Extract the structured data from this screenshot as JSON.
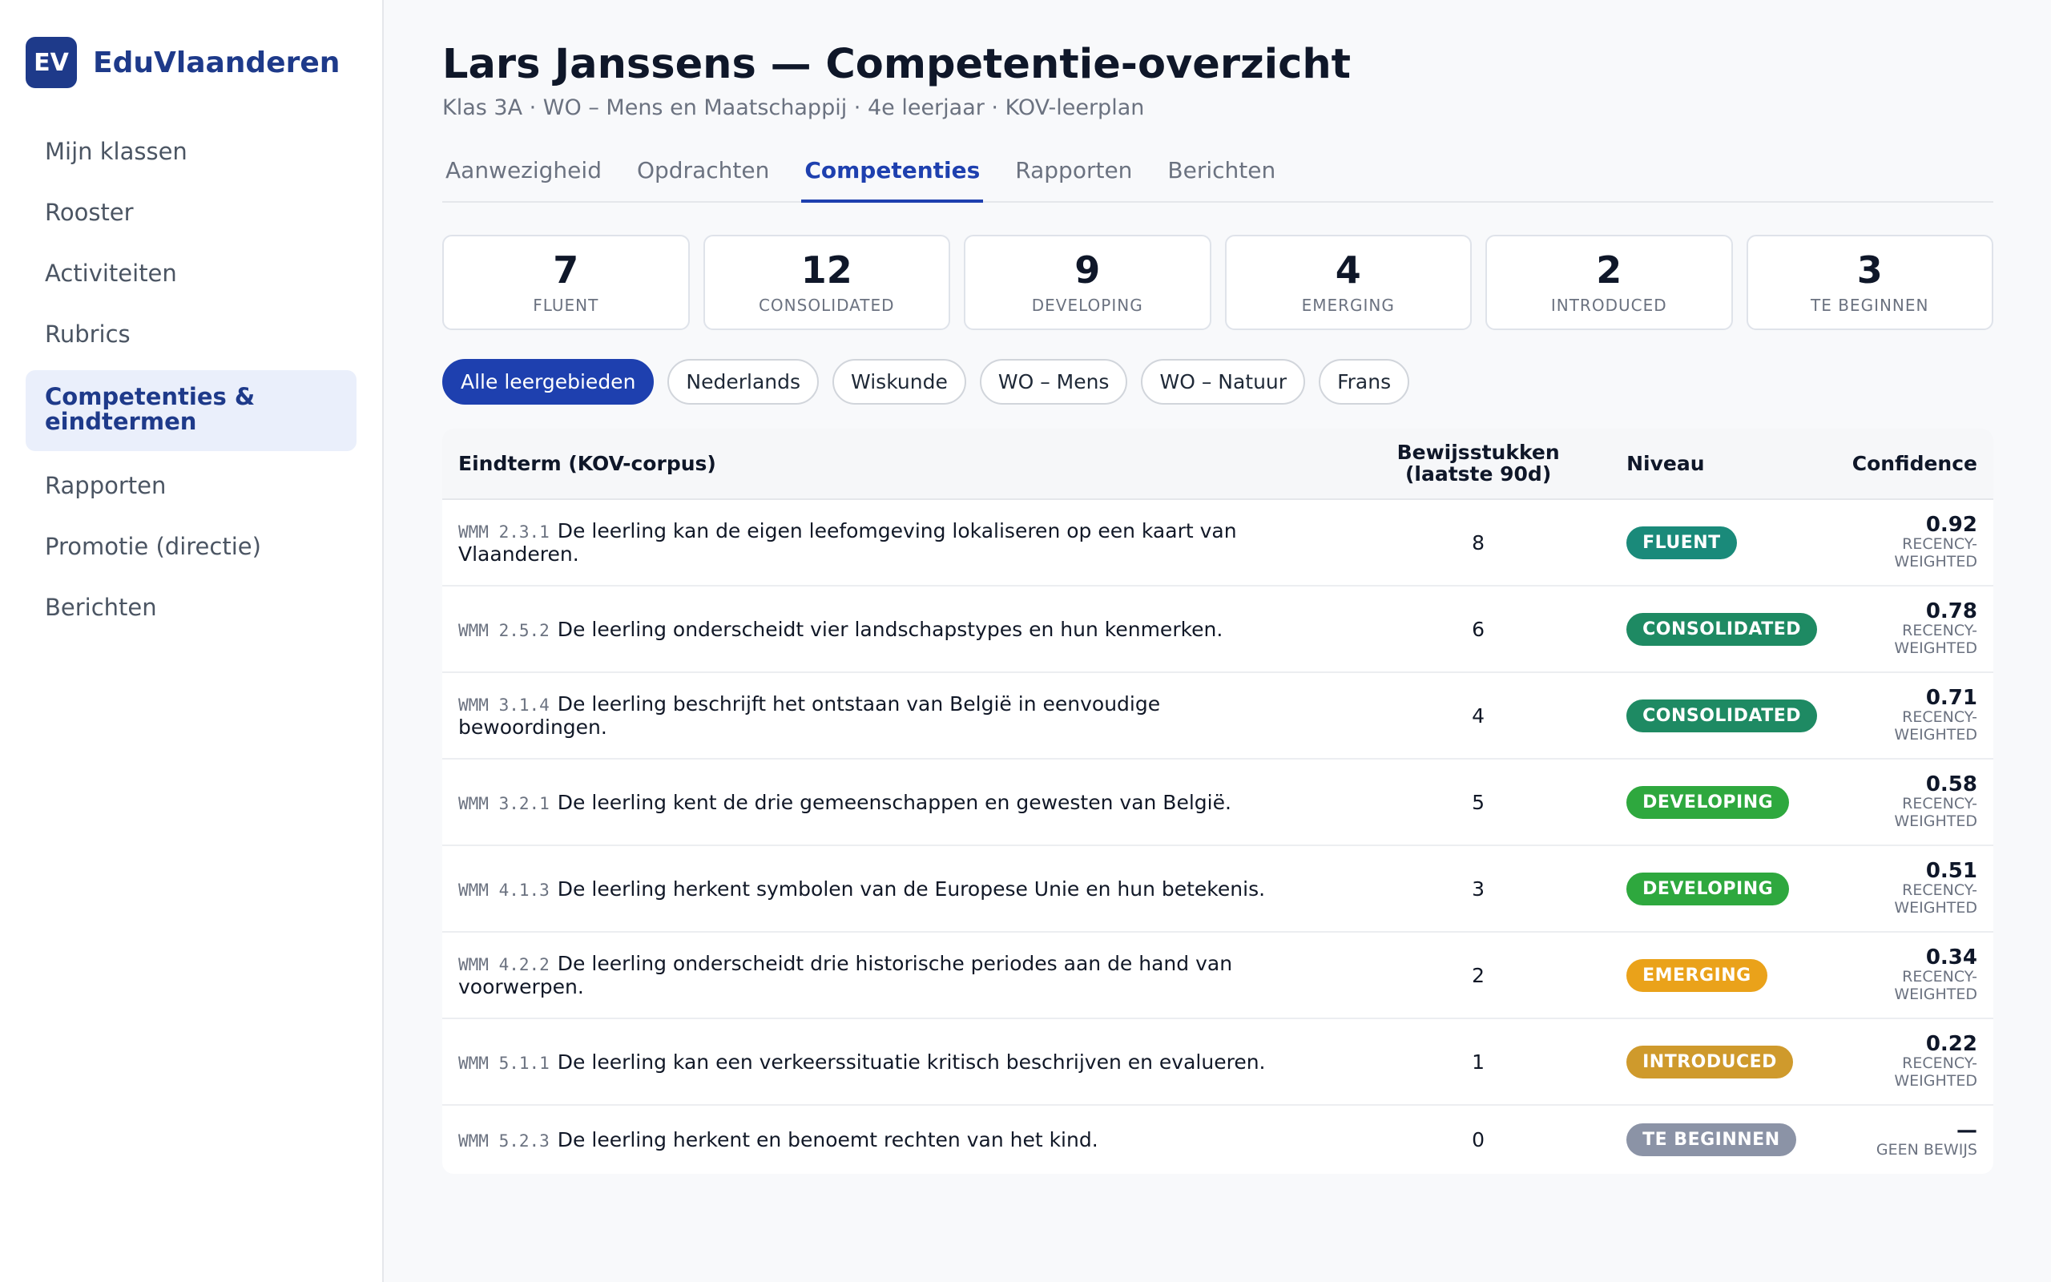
{
  "brand": {
    "logo": "EV",
    "name": "EduVlaanderen"
  },
  "sidebar": {
    "items": [
      {
        "label": "Mijn klassen",
        "active": false
      },
      {
        "label": "Rooster",
        "active": false
      },
      {
        "label": "Activiteiten",
        "active": false
      },
      {
        "label": "Rubrics",
        "active": false
      },
      {
        "label": "Competenties & eindtermen",
        "active": true
      },
      {
        "label": "Rapporten",
        "active": false
      },
      {
        "label": "Promotie (directie)",
        "active": false
      },
      {
        "label": "Berichten",
        "active": false
      }
    ]
  },
  "header": {
    "title": "Lars Janssens — Competentie-overzicht",
    "subtitle": "Klas 3A · WO – Mens en Maatschappij · 4e leerjaar · KOV-leerplan"
  },
  "tabs": [
    {
      "label": "Aanwezigheid",
      "active": false
    },
    {
      "label": "Opdrachten",
      "active": false
    },
    {
      "label": "Competenties",
      "active": true
    },
    {
      "label": "Rapporten",
      "active": false
    },
    {
      "label": "Berichten",
      "active": false
    }
  ],
  "stats": [
    {
      "value": "7",
      "label": "FLUENT"
    },
    {
      "value": "12",
      "label": "CONSOLIDATED"
    },
    {
      "value": "9",
      "label": "DEVELOPING"
    },
    {
      "value": "4",
      "label": "EMERGING"
    },
    {
      "value": "2",
      "label": "INTRODUCED"
    },
    {
      "value": "3",
      "label": "TE BEGINNEN"
    }
  ],
  "filters": [
    {
      "label": "Alle leergebieden",
      "active": true
    },
    {
      "label": "Nederlands",
      "active": false
    },
    {
      "label": "Wiskunde",
      "active": false
    },
    {
      "label": "WO – Mens",
      "active": false
    },
    {
      "label": "WO – Natuur",
      "active": false
    },
    {
      "label": "Frans",
      "active": false
    }
  ],
  "table": {
    "headers": {
      "eindterm": "Eindterm (KOV-corpus)",
      "evidence": "Bewijsstukken (laatste 90d)",
      "level": "Niveau",
      "confidence": "Confidence"
    },
    "rows": [
      {
        "code": "WMM 2.3.1",
        "text": "De leerling kan de eigen leefomgeving lokaliseren op een kaart van Vlaanderen.",
        "evidence": "8",
        "level": "FLUENT",
        "level_color": "#1a8a7a",
        "confidence": "0.92",
        "confidence_note": "RECENCY-WEIGHTED"
      },
      {
        "code": "WMM 2.5.2",
        "text": "De leerling onderscheidt vier landschapstypes en hun kenmerken.",
        "evidence": "6",
        "level": "CONSOLIDATED",
        "level_color": "#1e8a63",
        "confidence": "0.78",
        "confidence_note": "RECENCY-WEIGHTED"
      },
      {
        "code": "WMM 3.1.4",
        "text": "De leerling beschrijft het ontstaan van België in eenvoudige bewoordingen.",
        "evidence": "4",
        "level": "CONSOLIDATED",
        "level_color": "#1e8a63",
        "confidence": "0.71",
        "confidence_note": "RECENCY-WEIGHTED"
      },
      {
        "code": "WMM 3.2.1",
        "text": "De leerling kent de drie gemeenschappen en gewesten van België.",
        "evidence": "5",
        "level": "DEVELOPING",
        "level_color": "#2ea83e",
        "confidence": "0.58",
        "confidence_note": "RECENCY-WEIGHTED"
      },
      {
        "code": "WMM 4.1.3",
        "text": "De leerling herkent symbolen van de Europese Unie en hun betekenis.",
        "evidence": "3",
        "level": "DEVELOPING",
        "level_color": "#2ea83e",
        "confidence": "0.51",
        "confidence_note": "RECENCY-WEIGHTED"
      },
      {
        "code": "WMM 4.2.2",
        "text": "De leerling onderscheidt drie historische periodes aan de hand van voorwerpen.",
        "evidence": "2",
        "level": "EMERGING",
        "level_color": "#eaa21a",
        "confidence": "0.34",
        "confidence_note": "RECENCY-WEIGHTED"
      },
      {
        "code": "WMM 5.1.1",
        "text": "De leerling kan een verkeerssituatie kritisch beschrijven en evalueren.",
        "evidence": "1",
        "level": "INTRODUCED",
        "level_color": "#cf9a2c",
        "confidence": "0.22",
        "confidence_note": "RECENCY-WEIGHTED"
      },
      {
        "code": "WMM 5.2.3",
        "text": "De leerling herkent en benoemt rechten van het kind.",
        "evidence": "0",
        "level": "TE BEGINNEN",
        "level_color": "#8b93a6",
        "confidence": "—",
        "confidence_note": "GEEN BEWIJS"
      }
    ]
  }
}
